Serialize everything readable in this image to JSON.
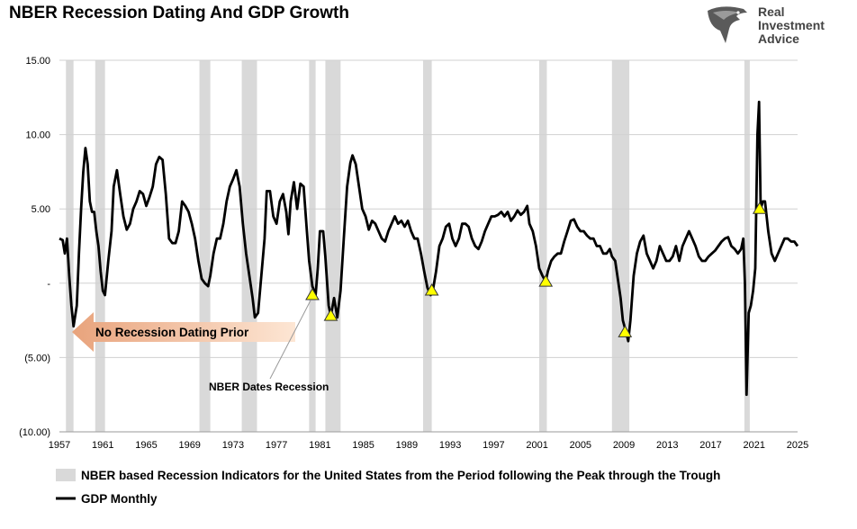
{
  "chart_data": {
    "type": "line",
    "title": "NBER Recession Dating And GDP Growth",
    "xlabel": "",
    "ylabel": "",
    "xlim": [
      1957,
      2025
    ],
    "ylim": [
      -10,
      15
    ],
    "grid": true,
    "legend_placement": "bottom",
    "x_ticks": [
      "1957",
      "1961",
      "1965",
      "1969",
      "1973",
      "1977",
      "1981",
      "1985",
      "1989",
      "1993",
      "1997",
      "2001",
      "2005",
      "2009",
      "2013",
      "2017",
      "2021",
      "2025"
    ],
    "y_ticks": [
      {
        "value": 15,
        "label": "15.00"
      },
      {
        "value": 10,
        "label": "10.00"
      },
      {
        "value": 5,
        "label": "5.00"
      },
      {
        "value": 0,
        "label": "-"
      },
      {
        "value": -5,
        "label": "(5.00)"
      },
      {
        "value": -10,
        "label": "(10.00)"
      }
    ],
    "recessions": [
      [
        1957.6,
        1958.3
      ],
      [
        1960.3,
        1961.2
      ],
      [
        1969.9,
        1970.9
      ],
      [
        1973.8,
        1975.2
      ],
      [
        1980.0,
        1980.6
      ],
      [
        1981.5,
        1982.9
      ],
      [
        1990.5,
        1991.3
      ],
      [
        2001.2,
        2001.9
      ],
      [
        2007.9,
        2009.5
      ],
      [
        2020.1,
        2020.4
      ]
    ],
    "series": [
      {
        "name": "GDP Monthly",
        "color": "#000000",
        "points": [
          [
            1957.0,
            3.0
          ],
          [
            1957.3,
            2.9
          ],
          [
            1957.5,
            2.0
          ],
          [
            1957.7,
            3.0
          ],
          [
            1957.9,
            0.5
          ],
          [
            1958.1,
            -1.5
          ],
          [
            1958.3,
            -2.9
          ],
          [
            1958.6,
            -1.5
          ],
          [
            1958.8,
            2.0
          ],
          [
            1959.0,
            5.0
          ],
          [
            1959.2,
            7.5
          ],
          [
            1959.4,
            9.1
          ],
          [
            1959.6,
            8.0
          ],
          [
            1959.8,
            5.5
          ],
          [
            1960.0,
            4.8
          ],
          [
            1960.2,
            4.8
          ],
          [
            1960.4,
            3.5
          ],
          [
            1960.6,
            2.5
          ],
          [
            1960.8,
            0.8
          ],
          [
            1961.0,
            -0.5
          ],
          [
            1961.2,
            -0.8
          ],
          [
            1961.5,
            1.5
          ],
          [
            1961.8,
            3.5
          ],
          [
            1962.0,
            6.5
          ],
          [
            1962.3,
            7.6
          ],
          [
            1962.6,
            6.0
          ],
          [
            1962.9,
            4.5
          ],
          [
            1963.2,
            3.6
          ],
          [
            1963.5,
            4.0
          ],
          [
            1963.8,
            5.0
          ],
          [
            1964.1,
            5.5
          ],
          [
            1964.4,
            6.2
          ],
          [
            1964.7,
            6.0
          ],
          [
            1965.0,
            5.2
          ],
          [
            1965.3,
            5.8
          ],
          [
            1965.6,
            6.5
          ],
          [
            1965.9,
            8.0
          ],
          [
            1966.2,
            8.5
          ],
          [
            1966.5,
            8.3
          ],
          [
            1966.8,
            6.0
          ],
          [
            1967.1,
            3.0
          ],
          [
            1967.4,
            2.7
          ],
          [
            1967.7,
            2.7
          ],
          [
            1968.0,
            3.5
          ],
          [
            1968.3,
            5.5
          ],
          [
            1968.6,
            5.2
          ],
          [
            1968.9,
            4.8
          ],
          [
            1969.2,
            4.0
          ],
          [
            1969.5,
            3.0
          ],
          [
            1969.8,
            1.5
          ],
          [
            1970.1,
            0.3
          ],
          [
            1970.4,
            0.0
          ],
          [
            1970.7,
            -0.2
          ],
          [
            1970.9,
            0.5
          ],
          [
            1971.2,
            2.0
          ],
          [
            1971.5,
            3.0
          ],
          [
            1971.8,
            3.0
          ],
          [
            1972.1,
            4.0
          ],
          [
            1972.4,
            5.5
          ],
          [
            1972.7,
            6.5
          ],
          [
            1973.0,
            7.0
          ],
          [
            1973.3,
            7.6
          ],
          [
            1973.6,
            6.5
          ],
          [
            1973.9,
            4.0
          ],
          [
            1974.2,
            2.0
          ],
          [
            1974.5,
            0.5
          ],
          [
            1974.8,
            -1.0
          ],
          [
            1975.0,
            -2.3
          ],
          [
            1975.3,
            -2.0
          ],
          [
            1975.6,
            0.5
          ],
          [
            1975.9,
            3.0
          ],
          [
            1976.1,
            6.2
          ],
          [
            1976.4,
            6.2
          ],
          [
            1976.7,
            4.5
          ],
          [
            1977.0,
            4.0
          ],
          [
            1977.3,
            5.5
          ],
          [
            1977.6,
            6.0
          ],
          [
            1977.9,
            4.8
          ],
          [
            1978.1,
            3.3
          ],
          [
            1978.3,
            5.5
          ],
          [
            1978.6,
            6.8
          ],
          [
            1978.9,
            5.0
          ],
          [
            1979.2,
            6.7
          ],
          [
            1979.5,
            6.5
          ],
          [
            1979.8,
            3.5
          ],
          [
            1980.0,
            1.5
          ],
          [
            1980.3,
            -0.2
          ],
          [
            1980.6,
            -0.8
          ],
          [
            1980.8,
            1.0
          ],
          [
            1981.0,
            3.5
          ],
          [
            1981.3,
            3.5
          ],
          [
            1981.5,
            1.8
          ],
          [
            1981.8,
            -1.5
          ],
          [
            1982.0,
            -2.2
          ],
          [
            1982.3,
            -1.0
          ],
          [
            1982.6,
            -2.3
          ],
          [
            1982.9,
            -0.5
          ],
          [
            1983.2,
            3.0
          ],
          [
            1983.5,
            6.5
          ],
          [
            1983.8,
            8.1
          ],
          [
            1984.0,
            8.6
          ],
          [
            1984.3,
            8.0
          ],
          [
            1984.6,
            6.5
          ],
          [
            1984.9,
            5.0
          ],
          [
            1985.2,
            4.5
          ],
          [
            1985.5,
            3.6
          ],
          [
            1985.8,
            4.2
          ],
          [
            1986.1,
            4.0
          ],
          [
            1986.4,
            3.5
          ],
          [
            1986.7,
            3.0
          ],
          [
            1987.0,
            2.8
          ],
          [
            1987.3,
            3.5
          ],
          [
            1987.6,
            4.0
          ],
          [
            1987.9,
            4.5
          ],
          [
            1988.2,
            4.0
          ],
          [
            1988.5,
            4.2
          ],
          [
            1988.8,
            3.8
          ],
          [
            1989.1,
            4.2
          ],
          [
            1989.4,
            3.5
          ],
          [
            1989.7,
            3.0
          ],
          [
            1990.0,
            3.0
          ],
          [
            1990.3,
            2.0
          ],
          [
            1990.6,
            0.8
          ],
          [
            1990.9,
            -0.3
          ],
          [
            1991.2,
            -0.8
          ],
          [
            1991.4,
            -0.5
          ],
          [
            1991.7,
            0.8
          ],
          [
            1992.0,
            2.5
          ],
          [
            1992.3,
            3.0
          ],
          [
            1992.6,
            3.8
          ],
          [
            1992.9,
            4.0
          ],
          [
            1993.2,
            3.0
          ],
          [
            1993.5,
            2.5
          ],
          [
            1993.8,
            3.0
          ],
          [
            1994.1,
            4.0
          ],
          [
            1994.4,
            4.0
          ],
          [
            1994.7,
            3.8
          ],
          [
            1995.0,
            3.0
          ],
          [
            1995.3,
            2.5
          ],
          [
            1995.6,
            2.3
          ],
          [
            1995.9,
            2.8
          ],
          [
            1996.2,
            3.5
          ],
          [
            1996.5,
            4.0
          ],
          [
            1996.8,
            4.5
          ],
          [
            1997.1,
            4.5
          ],
          [
            1997.4,
            4.6
          ],
          [
            1997.7,
            4.8
          ],
          [
            1998.0,
            4.5
          ],
          [
            1998.3,
            4.8
          ],
          [
            1998.6,
            4.2
          ],
          [
            1998.9,
            4.5
          ],
          [
            1999.2,
            4.9
          ],
          [
            1999.5,
            4.6
          ],
          [
            1999.8,
            4.8
          ],
          [
            2000.1,
            5.2
          ],
          [
            2000.3,
            4.0
          ],
          [
            2000.6,
            3.5
          ],
          [
            2000.9,
            2.5
          ],
          [
            2001.2,
            1.0
          ],
          [
            2001.5,
            0.5
          ],
          [
            2001.8,
            0.1
          ],
          [
            2002.0,
            0.8
          ],
          [
            2002.3,
            1.5
          ],
          [
            2002.6,
            1.8
          ],
          [
            2002.9,
            2.0
          ],
          [
            2003.2,
            2.0
          ],
          [
            2003.5,
            2.8
          ],
          [
            2003.8,
            3.5
          ],
          [
            2004.1,
            4.2
          ],
          [
            2004.4,
            4.3
          ],
          [
            2004.7,
            3.8
          ],
          [
            2005.0,
            3.5
          ],
          [
            2005.3,
            3.5
          ],
          [
            2005.6,
            3.2
          ],
          [
            2005.9,
            3.0
          ],
          [
            2006.2,
            3.0
          ],
          [
            2006.5,
            2.5
          ],
          [
            2006.8,
            2.5
          ],
          [
            2007.1,
            2.0
          ],
          [
            2007.4,
            2.0
          ],
          [
            2007.7,
            2.3
          ],
          [
            2007.9,
            1.8
          ],
          [
            2008.2,
            1.5
          ],
          [
            2008.4,
            0.5
          ],
          [
            2008.7,
            -1.0
          ],
          [
            2008.9,
            -2.5
          ],
          [
            2009.2,
            -3.3
          ],
          [
            2009.4,
            -3.9
          ],
          [
            2009.6,
            -2.5
          ],
          [
            2009.9,
            0.5
          ],
          [
            2010.2,
            2.0
          ],
          [
            2010.5,
            2.8
          ],
          [
            2010.8,
            3.2
          ],
          [
            2011.1,
            2.0
          ],
          [
            2011.4,
            1.5
          ],
          [
            2011.7,
            1.0
          ],
          [
            2012.0,
            1.5
          ],
          [
            2012.3,
            2.5
          ],
          [
            2012.6,
            2.0
          ],
          [
            2012.9,
            1.5
          ],
          [
            2013.2,
            1.5
          ],
          [
            2013.5,
            1.8
          ],
          [
            2013.8,
            2.5
          ],
          [
            2014.1,
            1.5
          ],
          [
            2014.4,
            2.5
          ],
          [
            2014.7,
            3.0
          ],
          [
            2015.0,
            3.5
          ],
          [
            2015.3,
            3.0
          ],
          [
            2015.6,
            2.5
          ],
          [
            2015.9,
            1.8
          ],
          [
            2016.2,
            1.5
          ],
          [
            2016.5,
            1.5
          ],
          [
            2016.8,
            1.8
          ],
          [
            2017.1,
            2.0
          ],
          [
            2017.4,
            2.2
          ],
          [
            2017.7,
            2.5
          ],
          [
            2018.0,
            2.8
          ],
          [
            2018.3,
            3.0
          ],
          [
            2018.6,
            3.1
          ],
          [
            2018.9,
            2.5
          ],
          [
            2019.2,
            2.3
          ],
          [
            2019.5,
            2.0
          ],
          [
            2019.8,
            2.3
          ],
          [
            2020.0,
            3.0
          ],
          [
            2020.15,
            0.0
          ],
          [
            2020.3,
            -7.5
          ],
          [
            2020.5,
            -2.0
          ],
          [
            2020.7,
            -1.5
          ],
          [
            2020.9,
            -0.5
          ],
          [
            2021.1,
            1.0
          ],
          [
            2021.3,
            10.0
          ],
          [
            2021.45,
            12.2
          ],
          [
            2021.6,
            5.0
          ],
          [
            2021.8,
            5.5
          ],
          [
            2022.0,
            5.5
          ],
          [
            2022.3,
            3.5
          ],
          [
            2022.6,
            2.0
          ],
          [
            2022.9,
            1.5
          ],
          [
            2023.2,
            2.0
          ],
          [
            2023.5,
            2.5
          ],
          [
            2023.8,
            3.0
          ],
          [
            2024.1,
            3.0
          ],
          [
            2024.4,
            2.8
          ],
          [
            2024.7,
            2.8
          ],
          [
            2025.0,
            2.5
          ]
        ]
      }
    ],
    "markers": [
      [
        1980.3,
        -0.8
      ],
      [
        1982.0,
        -2.2
      ],
      [
        1991.3,
        -0.5
      ],
      [
        2001.8,
        0.1
      ],
      [
        2009.1,
        -3.3
      ],
      [
        2021.5,
        5.0
      ]
    ]
  },
  "annotations": {
    "arrow_text": "No Recession Dating Prior",
    "callout_text": "NBER Dates Recession"
  },
  "legend": {
    "recession_label": "NBER based Recession Indicators for the United States from the Period following the Peak through the Trough",
    "gdp_label": "GDP Monthly"
  },
  "logo": {
    "line1": "Real",
    "line2": "Investment",
    "line3": "Advice"
  },
  "colors": {
    "recession_band": "#d9d9d9",
    "line": "#000000",
    "marker": "#ffff00",
    "arrow_start": "#e8a37c",
    "arrow_end": "#fde6d4"
  }
}
